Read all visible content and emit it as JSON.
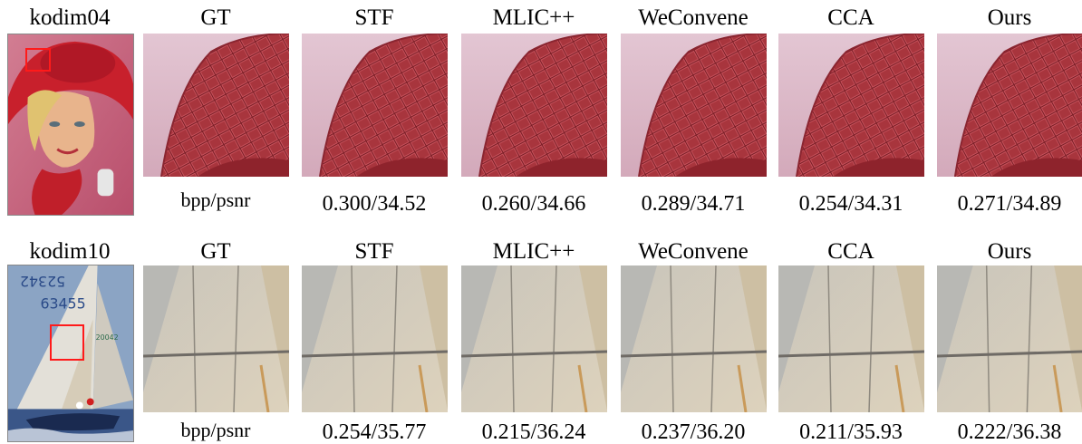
{
  "figure": {
    "rows": [
      {
        "image_name": "kodim04",
        "methods": [
          "GT",
          "STF",
          "MLIC++",
          "WeConvene",
          "CCA",
          "Ours"
        ],
        "metric_label": "bpp/psnr",
        "values": [
          "0.300/34.52",
          "0.260/34.66",
          "0.289/34.71",
          "0.254/34.31",
          "0.271/34.89"
        ],
        "colors": {
          "hat_red": "#b32a33",
          "crop_red": "#a8353d",
          "background_pink": "#d9b3c2"
        }
      },
      {
        "image_name": "kodim10",
        "methods": [
          "GT",
          "STF",
          "MLIC++",
          "WeConvene",
          "CCA",
          "Ours"
        ],
        "metric_label": "bpp/psnr",
        "values": [
          "0.254/35.77",
          "0.215/36.24",
          "0.237/36.20",
          "0.211/35.93",
          "0.222/36.38"
        ],
        "colors": {
          "sail": "#d6ccb8",
          "sky": "#8ba4c4",
          "sea": "#2f4a7a"
        }
      }
    ],
    "roi_color": "#ff1a1a"
  }
}
